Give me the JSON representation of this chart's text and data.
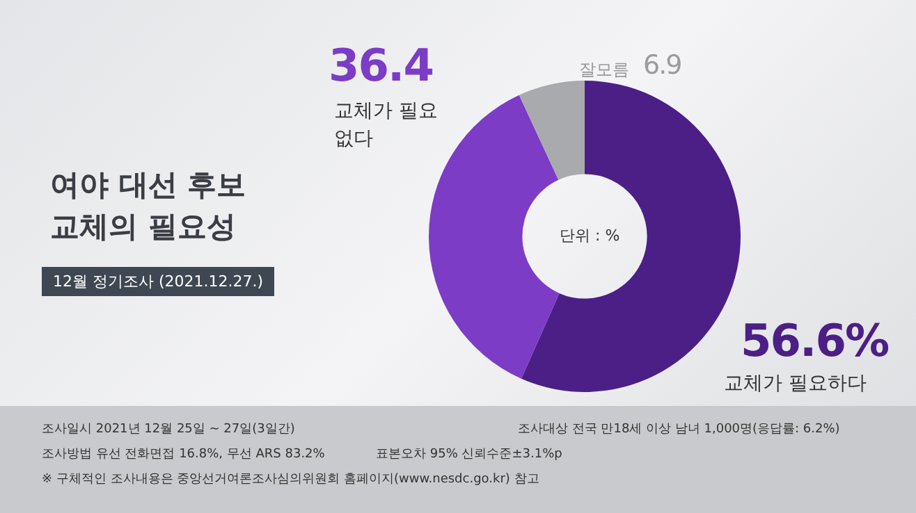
{
  "chart_data": {
    "type": "donut",
    "title": "여야 대선 후보\n교체의 필요성",
    "subtitle": "12월 정기조사 (2021.12.27.)",
    "categories": [
      "교체가 필요하다",
      "교체가 필요없다",
      "잘모름"
    ],
    "values": [
      56.6,
      36.4,
      6.9
    ],
    "value_labels": [
      "56.6%",
      "36.4",
      "6.9"
    ],
    "colors": [
      "#4b1f86",
      "#7c3cc6",
      "#a8aaad"
    ],
    "legend": false,
    "annotations": [
      "단위 : %",
      "조사일시  2021년 12월 25일 ~ 27일(3일간)",
      "조사대상  전국  만18세 이상 남녀  1,000명(응답률: 6.2%)",
      "조사방법  유선 전화면접 16.8%, 무선 ARS 83.2%",
      "표본오차  95% 신뢰수준±3.1%p",
      "※ 구체적인 조사내용은 중앙선거여론조사심의위원회 홈페이지(www.nesdc.go.kr) 참고"
    ]
  }
}
